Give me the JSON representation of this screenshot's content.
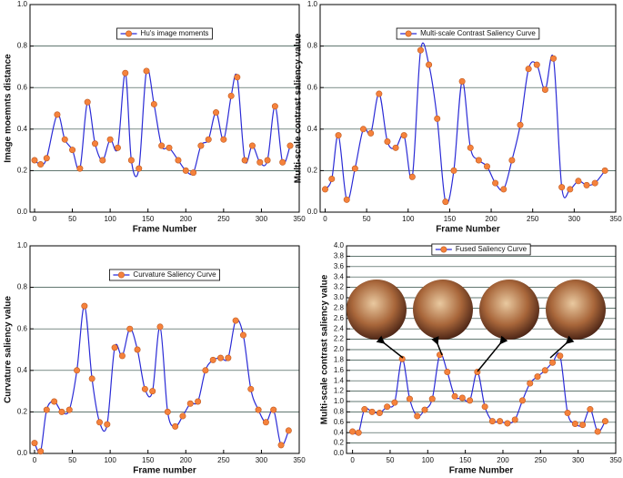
{
  "chart_data": [
    {
      "type": "line",
      "x_label": "Frame Number",
      "y_label": "Image moemnts distance",
      "legend": "top",
      "grid": true,
      "xlim": [
        -6,
        350
      ],
      "ylim": [
        0,
        1
      ],
      "xticks": [
        0,
        50,
        100,
        150,
        200,
        250,
        300,
        350
      ],
      "yticks": [
        {
          "value": 0,
          "label": "0.0"
        },
        {
          "value": 0.2,
          "label": "0.2"
        },
        {
          "value": 0.4,
          "label": "0.4"
        },
        {
          "value": 0.6,
          "label": "0.6"
        },
        {
          "value": 0.8,
          "label": "0.8"
        },
        {
          "value": 1,
          "label": "1.0"
        }
      ],
      "x": [
        0,
        8,
        16,
        30,
        40,
        50,
        60,
        70,
        80,
        90,
        100,
        110,
        120,
        128,
        138,
        148,
        158,
        168,
        178,
        190,
        200,
        210,
        220,
        230,
        240,
        250,
        260,
        268,
        278,
        288,
        298,
        308,
        318,
        328,
        338
      ],
      "series": [
        {
          "name": "Hu's image moments",
          "color": "#2b2bd6",
          "marker_color": "#f5823c",
          "values": [
            0.25,
            0.23,
            0.26,
            0.47,
            0.35,
            0.3,
            0.21,
            0.53,
            0.33,
            0.25,
            0.35,
            0.31,
            0.67,
            0.25,
            0.21,
            0.68,
            0.52,
            0.32,
            0.31,
            0.25,
            0.2,
            0.19,
            0.32,
            0.35,
            0.48,
            0.35,
            0.56,
            0.65,
            0.25,
            0.32,
            0.24,
            0.25,
            0.51,
            0.24,
            0.32
          ]
        }
      ]
    },
    {
      "type": "line",
      "x_label": "Frame Number",
      "y_label": "Multi-scale contrast saliency value",
      "legend": "top",
      "grid": true,
      "xlim": [
        -6,
        350
      ],
      "ylim": [
        0,
        1
      ],
      "xticks": [
        0,
        50,
        100,
        150,
        200,
        250,
        300,
        350
      ],
      "yticks": [
        {
          "value": 0,
          "label": "0.0"
        },
        {
          "value": 0.2,
          "label": "0.2"
        },
        {
          "value": 0.4,
          "label": "0.4"
        },
        {
          "value": 0.6,
          "label": "0.6"
        },
        {
          "value": 0.8,
          "label": "0.8"
        },
        {
          "value": 1,
          "label": "1.0"
        }
      ],
      "x": [
        0,
        8,
        16,
        26,
        36,
        46,
        55,
        65,
        75,
        85,
        95,
        105,
        115,
        125,
        135,
        145,
        155,
        165,
        175,
        185,
        195,
        205,
        215,
        225,
        235,
        245,
        255,
        265,
        275,
        285,
        295,
        305,
        315,
        325,
        337
      ],
      "series": [
        {
          "name": "Multi-scale Contrast Saliency Curve",
          "color": "#2b2bd6",
          "marker_color": "#f5823c",
          "values": [
            0.11,
            0.16,
            0.37,
            0.06,
            0.21,
            0.4,
            0.38,
            0.57,
            0.34,
            0.31,
            0.37,
            0.17,
            0.78,
            0.71,
            0.45,
            0.05,
            0.2,
            0.63,
            0.31,
            0.25,
            0.22,
            0.14,
            0.11,
            0.25,
            0.42,
            0.69,
            0.71,
            0.59,
            0.74,
            0.12,
            0.11,
            0.15,
            0.13,
            0.14,
            0.2
          ]
        }
      ]
    },
    {
      "type": "line",
      "x_label": "Frame number",
      "y_label": "Curvature saliency value",
      "legend": "top",
      "grid": true,
      "xlim": [
        -6,
        350
      ],
      "ylim": [
        0,
        1
      ],
      "xticks": [
        0,
        50,
        100,
        150,
        200,
        250,
        300,
        350
      ],
      "yticks": [
        {
          "value": 0,
          "label": "0.0"
        },
        {
          "value": 0.2,
          "label": "0.2"
        },
        {
          "value": 0.4,
          "label": "0.4"
        },
        {
          "value": 0.6,
          "label": "0.6"
        },
        {
          "value": 0.8,
          "label": "0.8"
        },
        {
          "value": 1,
          "label": "1.0"
        }
      ],
      "x": [
        0,
        8,
        16,
        26,
        36,
        46,
        56,
        66,
        76,
        86,
        96,
        106,
        116,
        126,
        136,
        146,
        156,
        166,
        176,
        186,
        196,
        206,
        216,
        226,
        236,
        246,
        256,
        266,
        276,
        286,
        296,
        306,
        316,
        326,
        336
      ],
      "series": [
        {
          "name": "Curvature Saliency Curve",
          "color": "#2b2bd6",
          "marker_color": "#f5823c",
          "values": [
            0.05,
            0.01,
            0.21,
            0.25,
            0.2,
            0.21,
            0.4,
            0.71,
            0.36,
            0.15,
            0.14,
            0.51,
            0.47,
            0.6,
            0.5,
            0.31,
            0.3,
            0.61,
            0.2,
            0.13,
            0.18,
            0.24,
            0.25,
            0.4,
            0.45,
            0.46,
            0.46,
            0.64,
            0.57,
            0.31,
            0.21,
            0.15,
            0.21,
            0.04,
            0.11
          ]
        }
      ]
    },
    {
      "type": "line",
      "x_label": "Frame Number",
      "y_label": "Multi-scale contrast saliency value",
      "legend": "top",
      "grid": true,
      "xlim": [
        -8,
        350
      ],
      "ylim": [
        0,
        4
      ],
      "xticks": [
        0,
        50,
        100,
        150,
        200,
        250,
        300,
        350
      ],
      "yticks": [
        {
          "value": 0,
          "label": "0.0"
        },
        {
          "value": 0.2,
          "label": "0.2"
        },
        {
          "value": 0.4,
          "label": "0.4"
        },
        {
          "value": 0.6,
          "label": "0.6"
        },
        {
          "value": 0.8,
          "label": "0.8"
        },
        {
          "value": 1,
          "label": "1.0"
        },
        {
          "value": 1.2,
          "label": "1.2"
        },
        {
          "value": 1.4,
          "label": "1.4"
        },
        {
          "value": 1.6,
          "label": "1.6"
        },
        {
          "value": 1.8,
          "label": "1.8"
        },
        {
          "value": 2,
          "label": "2.0"
        },
        {
          "value": 2.2,
          "label": "2.2"
        },
        {
          "value": 2.4,
          "label": "2.4"
        },
        {
          "value": 2.6,
          "label": "2.6"
        },
        {
          "value": 2.8,
          "label": "2.8"
        },
        {
          "value": 3,
          "label": "3.0"
        },
        {
          "value": 3.2,
          "label": "3.2"
        },
        {
          "value": 3.4,
          "label": "3.4"
        },
        {
          "value": 3.6,
          "label": "3.6"
        },
        {
          "value": 3.8,
          "label": "3.8"
        },
        {
          "value": 4,
          "label": "4.0"
        }
      ],
      "x": [
        0,
        8,
        16,
        26,
        36,
        46,
        56,
        66,
        76,
        86,
        96,
        106,
        116,
        126,
        136,
        146,
        156,
        166,
        176,
        186,
        196,
        206,
        216,
        226,
        236,
        246,
        256,
        266,
        276,
        286,
        296,
        306,
        316,
        326,
        336
      ],
      "series": [
        {
          "name": "Fused Saliency Curve",
          "color": "#2b2bd6",
          "marker_color": "#f5823c",
          "values": [
            0.42,
            0.4,
            0.85,
            0.8,
            0.78,
            0.9,
            0.98,
            1.82,
            1.05,
            0.72,
            0.84,
            1.05,
            1.9,
            1.57,
            1.1,
            1.07,
            1.02,
            1.57,
            0.9,
            0.62,
            0.62,
            0.58,
            0.65,
            1.02,
            1.35,
            1.48,
            1.6,
            1.75,
            1.88,
            0.78,
            0.57,
            0.55,
            0.85,
            0.42,
            0.62
          ]
        }
      ]
    }
  ]
}
